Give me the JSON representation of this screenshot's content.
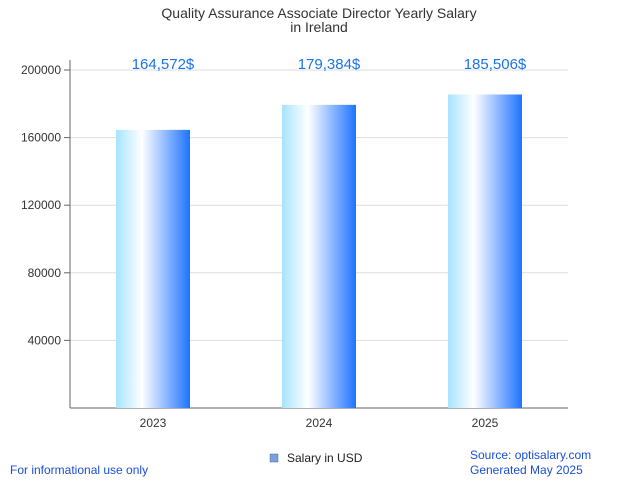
{
  "chart_data": {
    "type": "bar",
    "title": "Quality Assurance Associate Director Yearly Salary",
    "subtitle": "in Ireland",
    "categories": [
      "2023",
      "2024",
      "2025"
    ],
    "series": [
      {
        "name": "Salary in USD",
        "values": [
          164572,
          179384,
          185506
        ],
        "value_labels": [
          "164,572$",
          "179,384$",
          "185,506$"
        ]
      }
    ],
    "y_ticks": [
      40000,
      80000,
      120000,
      160000,
      200000
    ],
    "y_tick_labels": [
      "40000",
      "80000",
      "120000",
      "160000",
      "200000"
    ],
    "ylim": [
      0,
      200000
    ],
    "xlabel": "",
    "ylabel": "",
    "grid": true,
    "legend_position": "bottom-center",
    "colors": {
      "bar_light": "#a6e4ff",
      "bar_mid": "#ffffff",
      "bar_dark": "#1e73ff",
      "value_label": "#1a73e8",
      "footer_text": "#1a4fd6",
      "axis": "#666666",
      "grid": "#dddddd",
      "title_text": "#333333",
      "tick_text": "#333333",
      "legend_swatch": "#7a9fd9"
    }
  },
  "footer": {
    "left": "For informational use only",
    "source": "Source: optisalary.com",
    "generated": "Generated May 2025"
  }
}
